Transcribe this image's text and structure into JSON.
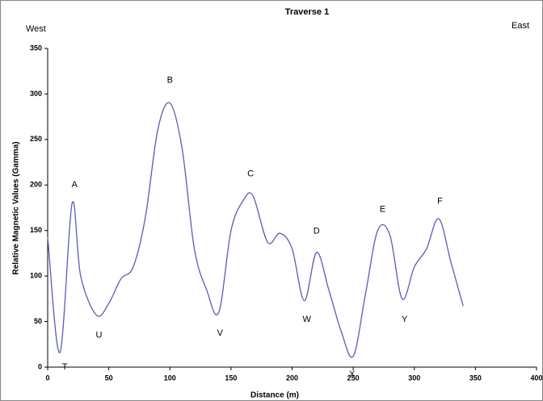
{
  "chart_data": {
    "type": "line",
    "title": "Traverse 1",
    "left_label": "West",
    "right_label": "East",
    "x_label": "Distance (m)",
    "y_label": "Relative Magnetic Values (Gamma)",
    "x": [
      0,
      10,
      20,
      27,
      40,
      50,
      60,
      70,
      80,
      90,
      100,
      110,
      120,
      130,
      140,
      150,
      160,
      168,
      180,
      190,
      200,
      210,
      220,
      230,
      240,
      250,
      260,
      270,
      280,
      290,
      300,
      310,
      320,
      330,
      340
    ],
    "series": [
      {
        "name": "Traverse 1",
        "color": "#5b5bb8",
        "values": [
          143,
          16,
          180,
          100,
          57,
          70,
          97,
          110,
          165,
          260,
          290,
          240,
          130,
          85,
          60,
          150,
          183,
          188,
          137,
          147,
          130,
          73,
          126,
          85,
          40,
          12,
          80,
          150,
          145,
          75,
          110,
          130,
          163,
          115,
          67
        ]
      }
    ],
    "xlim": [
      0,
      400
    ],
    "xticks": [
      0,
      50,
      100,
      150,
      200,
      250,
      300,
      350,
      400
    ],
    "ylim": [
      0,
      350
    ],
    "yticks": [
      0,
      50,
      100,
      150,
      200,
      250,
      300,
      350
    ],
    "annotations": [
      {
        "text": "A",
        "x": 22,
        "y": 200
      },
      {
        "text": "B",
        "x": 100,
        "y": 315
      },
      {
        "text": "C",
        "x": 166,
        "y": 212
      },
      {
        "text": "D",
        "x": 220,
        "y": 149
      },
      {
        "text": "E",
        "x": 274,
        "y": 173
      },
      {
        "text": "F",
        "x": 321,
        "y": 182
      },
      {
        "text": "T",
        "x": 14,
        "y": 0
      },
      {
        "text": "U",
        "x": 42,
        "y": 35
      },
      {
        "text": "V",
        "x": 141,
        "y": 37
      },
      {
        "text": "W",
        "x": 212,
        "y": 52
      },
      {
        "text": "X",
        "x": 249,
        "y": -8
      },
      {
        "text": "Y",
        "x": 292,
        "y": 52
      }
    ]
  }
}
